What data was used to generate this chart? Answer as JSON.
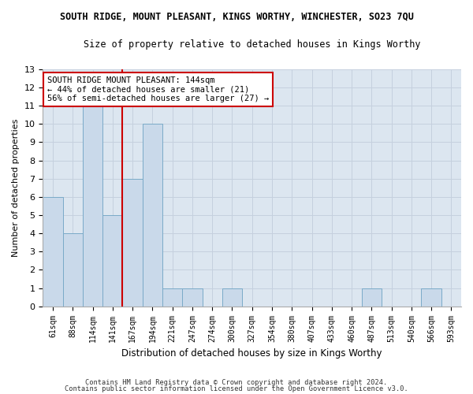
{
  "title": "SOUTH RIDGE, MOUNT PLEASANT, KINGS WORTHY, WINCHESTER, SO23 7QU",
  "subtitle": "Size of property relative to detached houses in Kings Worthy",
  "xlabel": "Distribution of detached houses by size in Kings Worthy",
  "ylabel": "Number of detached properties",
  "categories": [
    "61sqm",
    "88sqm",
    "114sqm",
    "141sqm",
    "167sqm",
    "194sqm",
    "221sqm",
    "247sqm",
    "274sqm",
    "300sqm",
    "327sqm",
    "354sqm",
    "380sqm",
    "407sqm",
    "433sqm",
    "460sqm",
    "487sqm",
    "513sqm",
    "540sqm",
    "566sqm",
    "593sqm"
  ],
  "values": [
    6,
    4,
    11,
    5,
    7,
    10,
    1,
    1,
    0,
    1,
    0,
    0,
    0,
    0,
    0,
    0,
    1,
    0,
    0,
    1,
    0
  ],
  "bar_color": "#c9d9ea",
  "bar_edge_color": "#7aaac8",
  "marker_label_line1": "SOUTH RIDGE MOUNT PLEASANT: 144sqm",
  "marker_label_line2": "← 44% of detached houses are smaller (21)",
  "marker_label_line3": "56% of semi-detached houses are larger (27) →",
  "annotation_box_color": "#ffffff",
  "annotation_box_edge": "#cc0000",
  "vline_color": "#cc0000",
  "vline_x_index": 3,
  "ylim": [
    0,
    13
  ],
  "yticks": [
    0,
    1,
    2,
    3,
    4,
    5,
    6,
    7,
    8,
    9,
    10,
    11,
    12,
    13
  ],
  "grid_color": "#c5d0de",
  "plot_bg_color": "#dce6f0",
  "fig_bg_color": "#ffffff",
  "footer1": "Contains HM Land Registry data © Crown copyright and database right 2024.",
  "footer2": "Contains public sector information licensed under the Open Government Licence v3.0.",
  "title_fontsize": 8.5,
  "subtitle_fontsize": 8.5
}
